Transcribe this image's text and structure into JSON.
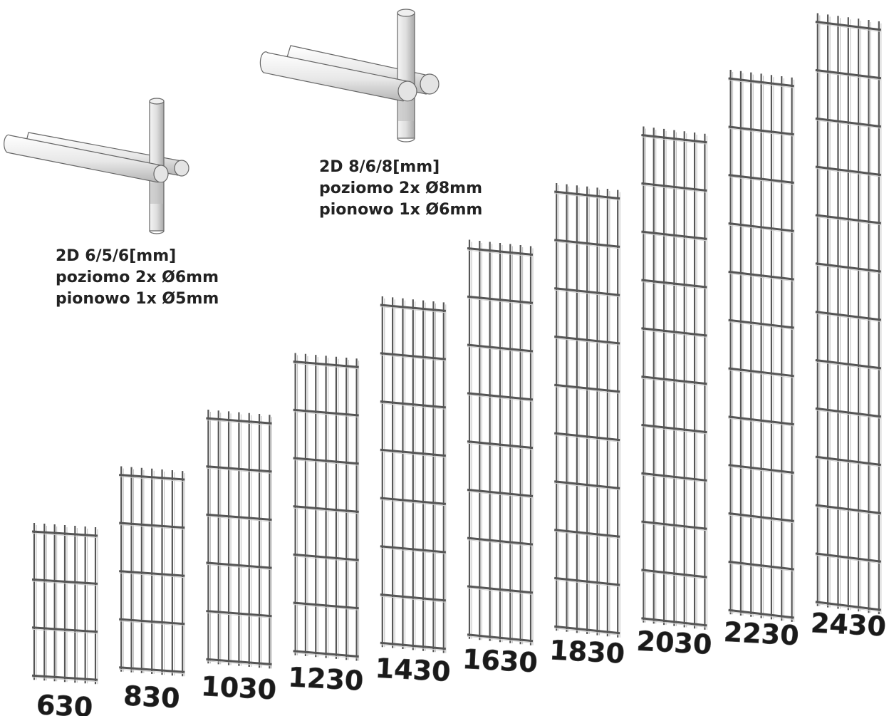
{
  "panel_heights": [
    "630",
    "830",
    "1030",
    "1230",
    "1430",
    "1630",
    "1830",
    "2030",
    "2230",
    "2430"
  ],
  "specs": [
    {
      "title": "2D 6/5/6[mm]",
      "horizontal": "poziomo 2x Ø6mm",
      "vertical": "pionowo 1x Ø5mm"
    },
    {
      "title": "2D 8/6/8[mm]",
      "horizontal": "poziomo 2x Ø8mm",
      "vertical": "pionowo 1x Ø6mm"
    }
  ],
  "colors": {
    "wire": "#555555",
    "rod_fill": "#e6e6e6",
    "rod_stroke": "#666666",
    "label": "#1a1a1a"
  }
}
